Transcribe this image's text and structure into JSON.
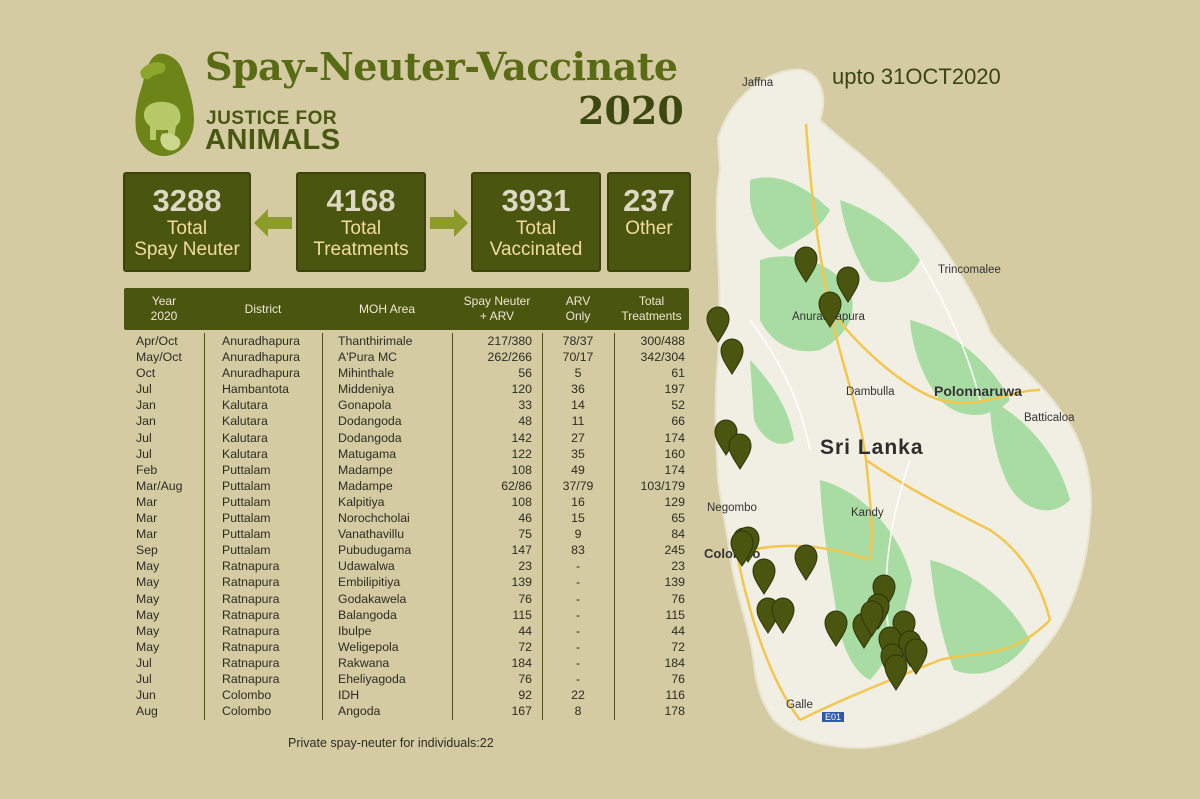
{
  "header": {
    "title": "Spay-Neuter-Vaccinate",
    "year": "2020",
    "org_line1": "JUSTICE FOR",
    "org_line2": "ANIMALS",
    "upto": "upto 31OCT2020"
  },
  "stats": {
    "spay": {
      "number": "3288",
      "label1": "Total",
      "label2": "Spay Neuter"
    },
    "treatments": {
      "number": "4168",
      "label1": "Total",
      "label2": "Treatments"
    },
    "vaccinated": {
      "number": "3931",
      "label1": "Total",
      "label2": "Vaccinated"
    },
    "other": {
      "number": "237",
      "label1": "Other"
    }
  },
  "table": {
    "headers": {
      "year_l1": "Year",
      "year_l2": "2020",
      "district": "District",
      "moh": "MOH Area",
      "spay_l1": "Spay Neuter",
      "spay_l2": "+ ARV",
      "arv_l1": "ARV",
      "arv_l2": "Only",
      "total_l1": "Total",
      "total_l2": "Treatments"
    },
    "rows": [
      [
        "Apr/Oct",
        "Anuradhapura",
        "Thanthirimale",
        "217/380",
        "78/37",
        "300/488"
      ],
      [
        "May/Oct",
        "Anuradhapura",
        "A'Pura MC",
        "262/266",
        "70/17",
        "342/304"
      ],
      [
        "Oct",
        "Anuradhapura",
        "Mihinthale",
        "56",
        "5",
        "61"
      ],
      [
        "Jul",
        "Hambantota",
        "Middeniya",
        "120",
        "36",
        "197"
      ],
      [
        "Jan",
        "Kalutara",
        "Gonapola",
        "33",
        "14",
        "52"
      ],
      [
        "Jan",
        "Kalutara",
        "Dodangoda",
        "48",
        "11",
        "66"
      ],
      [
        "Jul",
        "Kalutara",
        "Dodangoda",
        "142",
        "27",
        "174"
      ],
      [
        "Jul",
        "Kalutara",
        "Matugama",
        "122",
        "35",
        "160"
      ],
      [
        "Feb",
        "Puttalam",
        "Madampe",
        "108",
        "49",
        "174"
      ],
      [
        "Mar/Aug",
        "Puttalam",
        "Madampe",
        "62/86",
        "37/79",
        "103/179"
      ],
      [
        "Mar",
        "Puttalam",
        "Kalpitiya",
        "108",
        "16",
        "129"
      ],
      [
        "Mar",
        "Puttalam",
        "Norochcholai",
        "46",
        "15",
        "65"
      ],
      [
        "Mar",
        "Puttalam",
        "Vanathavillu",
        "75",
        "9",
        "84"
      ],
      [
        "Sep",
        "Puttalam",
        "Pubudugama",
        "147",
        "83",
        "245"
      ],
      [
        "May",
        "Ratnapura",
        "Udawalwa",
        "23",
        "-",
        "23"
      ],
      [
        "May",
        "Ratnapura",
        "Embilipitiya",
        "139",
        "-",
        "139"
      ],
      [
        "May",
        "Ratnapura",
        "Godakawela",
        "76",
        "-",
        "76"
      ],
      [
        "May",
        "Ratnapura",
        "Balangoda",
        "115",
        "-",
        "115"
      ],
      [
        "May",
        "Ratnapura",
        "Ibulpe",
        "44",
        "-",
        "44"
      ],
      [
        "May",
        "Ratnapura",
        "Weligepola",
        "72",
        "-",
        "72"
      ],
      [
        "Jul",
        "Ratnapura",
        "Rakwana",
        "184",
        "-",
        "184"
      ],
      [
        "Jul",
        "Ratnapura",
        "Eheliyagoda",
        "76",
        "-",
        "76"
      ],
      [
        "Jun",
        "Colombo",
        "IDH",
        "92",
        "22",
        "116"
      ],
      [
        "Aug",
        "Colombo",
        "Angoda",
        "167",
        "8",
        "178"
      ]
    ],
    "footnote": "Private spay-neuter for individuals:22"
  },
  "map": {
    "country": "Sri Lanka",
    "labels": {
      "jaffna": "Jaffna",
      "trincomalee": "Trincomalee",
      "anuradhapura": "Anuradhapura",
      "dambulla": "Dambulla",
      "polonnaruwa": "Polonnaruwa",
      "batticaloa": "Batticaloa",
      "negombo": "Negombo",
      "kandy": "Kandy",
      "colombo": "Colombo",
      "galle": "Galle",
      "e01": "E01"
    },
    "colors": {
      "land": "#f2f0e6",
      "green": "#a9dca3",
      "marker": "#4a5510",
      "road": "#f3c74e"
    }
  }
}
